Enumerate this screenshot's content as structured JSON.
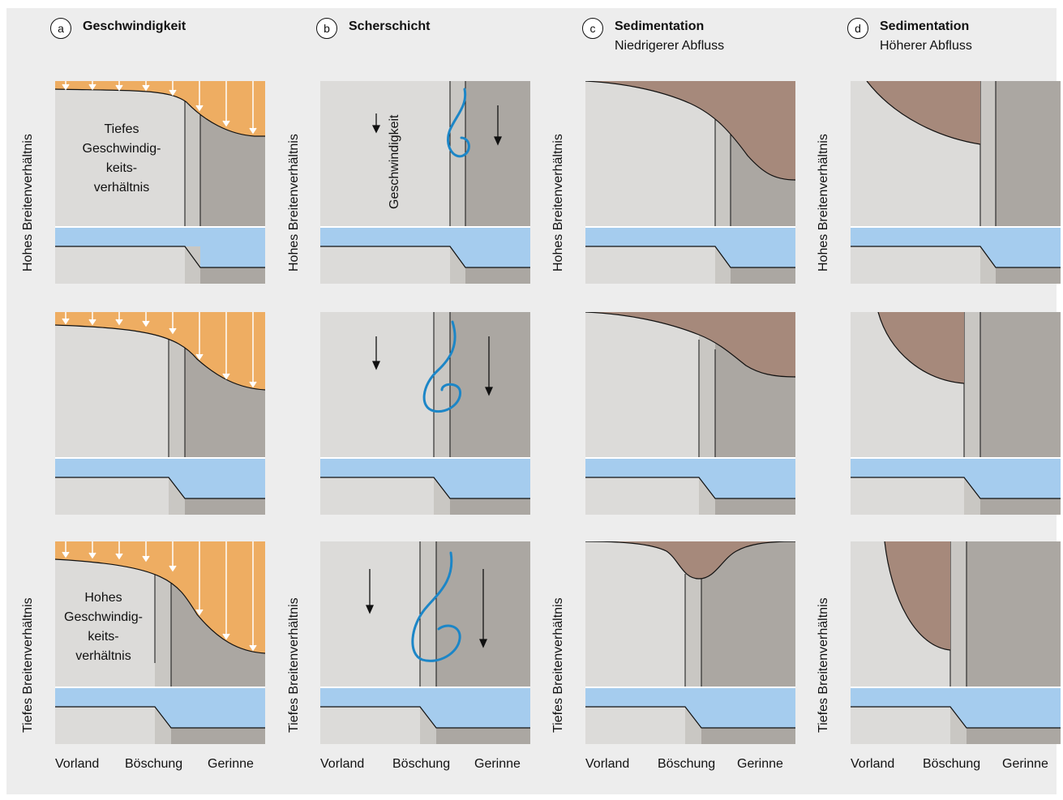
{
  "columns": [
    {
      "letter": "a",
      "title": "Geschwindigkeit",
      "subtitle": ""
    },
    {
      "letter": "b",
      "title": "Scherschicht",
      "subtitle": ""
    },
    {
      "letter": "c",
      "title": "Sedimentation",
      "subtitle": "Niedrigerer Abfluss"
    },
    {
      "letter": "d",
      "title": "Sedimentation",
      "subtitle": "Höherer Abfluss"
    }
  ],
  "row_labels": {
    "top": "Hohes Breitenverhältnis",
    "bottom": "Tiefes Breitenverhältnis"
  },
  "x_axis": {
    "left": "Vorland",
    "middle": "Böschung",
    "right": "Gerinne"
  },
  "annotations": {
    "low_velocity_ratio": [
      "Tiefes",
      "Geschwindig-",
      "keits-",
      "verhältnis"
    ],
    "high_velocity_ratio": [
      "Hohes",
      "Geschwindig-",
      "keits-",
      "verhältnis"
    ],
    "velocity_axis": "Geschwindigkeit"
  },
  "colors": {
    "background": "#ededed",
    "floodplain": "#dcdbd9",
    "bank": "#c9c7c3",
    "channel": "#aba7a2",
    "velocity": "#eead62",
    "water": "#a5ccee",
    "sediment": "#a6897b",
    "vortex": "#1c86c7"
  }
}
